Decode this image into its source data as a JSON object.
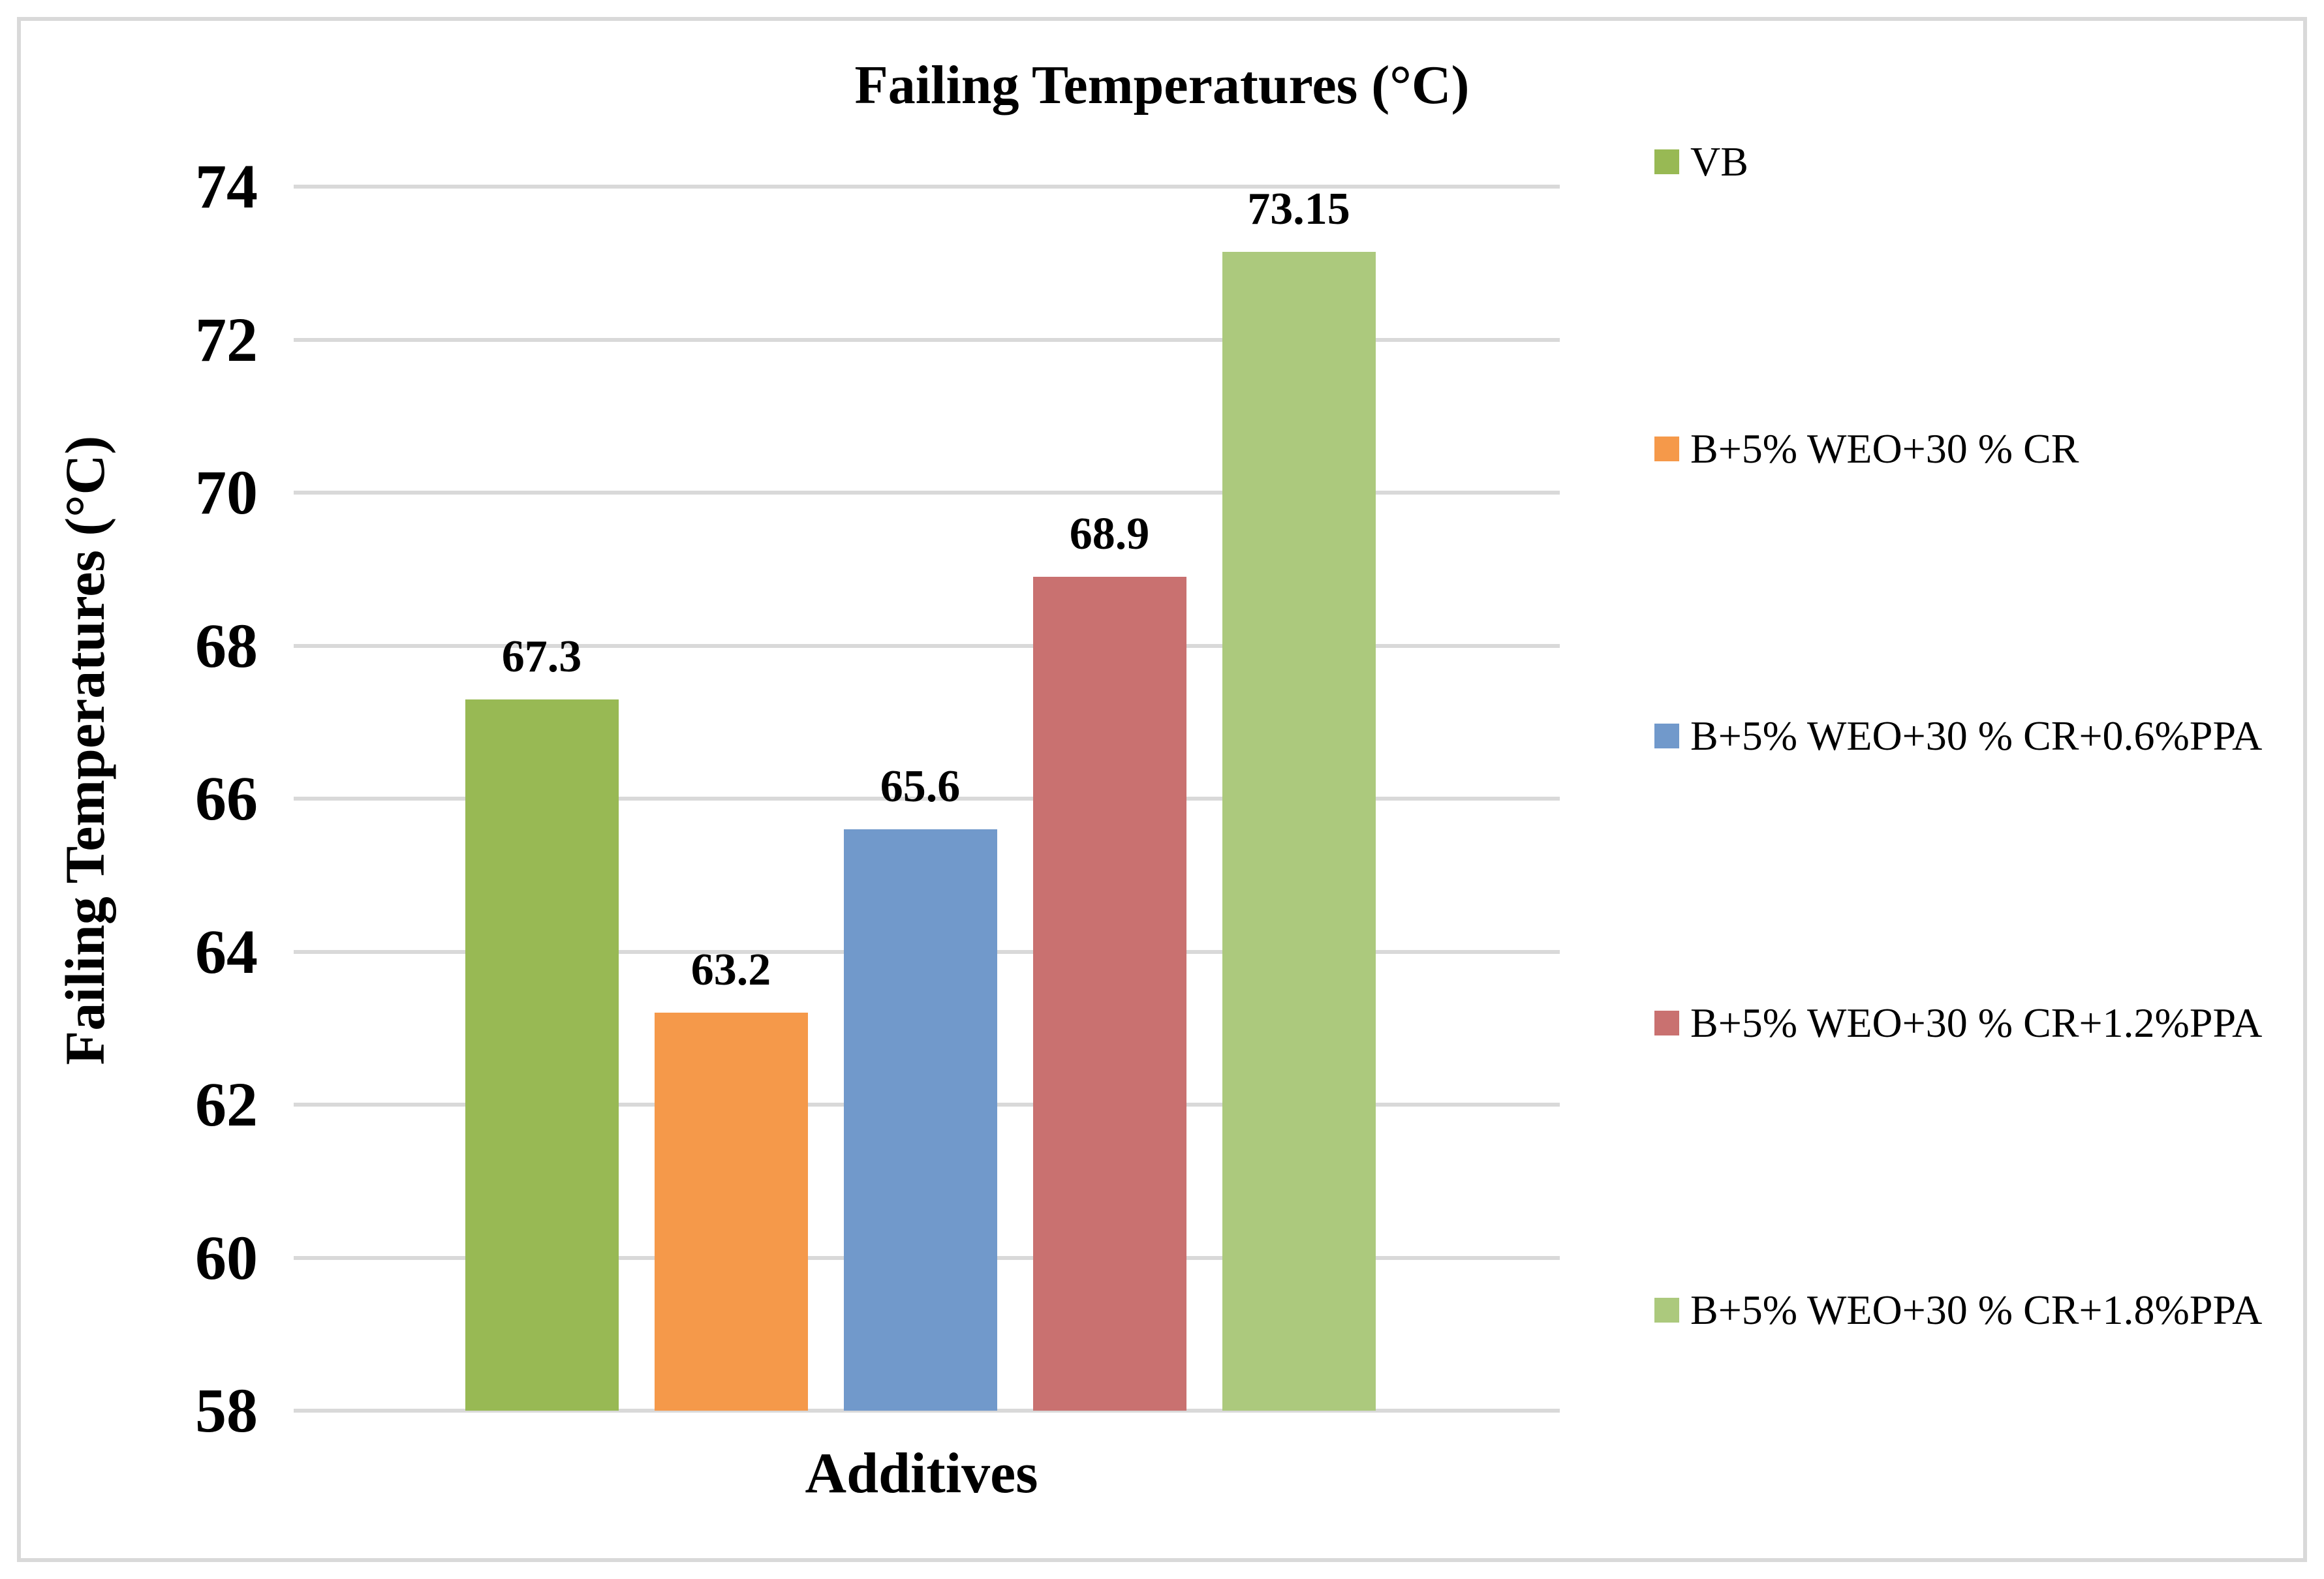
{
  "chart_data": {
    "type": "bar",
    "title": "Failing Temperatures (°C)",
    "xlabel": "Additives",
    "ylabel": "Failing Temperatures (°C)",
    "ylim": [
      58,
      74
    ],
    "ytick_step": 2,
    "yticks": [
      74,
      72,
      70,
      68,
      66,
      64,
      62,
      60,
      58
    ],
    "grid": "horizontal",
    "legend_position": "right",
    "categories": [
      "VB",
      "B+5% WEO+30 % CR",
      "B+5% WEO+30 % CR+0.6%PPA",
      "B+5% WEO+30 % CR+1.2%PPA",
      "B+5% WEO+30 % CR+1.8%PPA"
    ],
    "values": [
      67.3,
      63.2,
      65.6,
      68.9,
      73.15
    ],
    "value_labels": [
      "67.3",
      "63.2",
      "65.6",
      "68.9",
      "73.15"
    ],
    "bar_colors": [
      "#98B954",
      "#F5994A",
      "#7199CB",
      "#C97170",
      "#ACC97D"
    ],
    "gridline_color": "#D9D9D9",
    "frame_color": "#D9D9D9",
    "text_color": "#000000"
  }
}
